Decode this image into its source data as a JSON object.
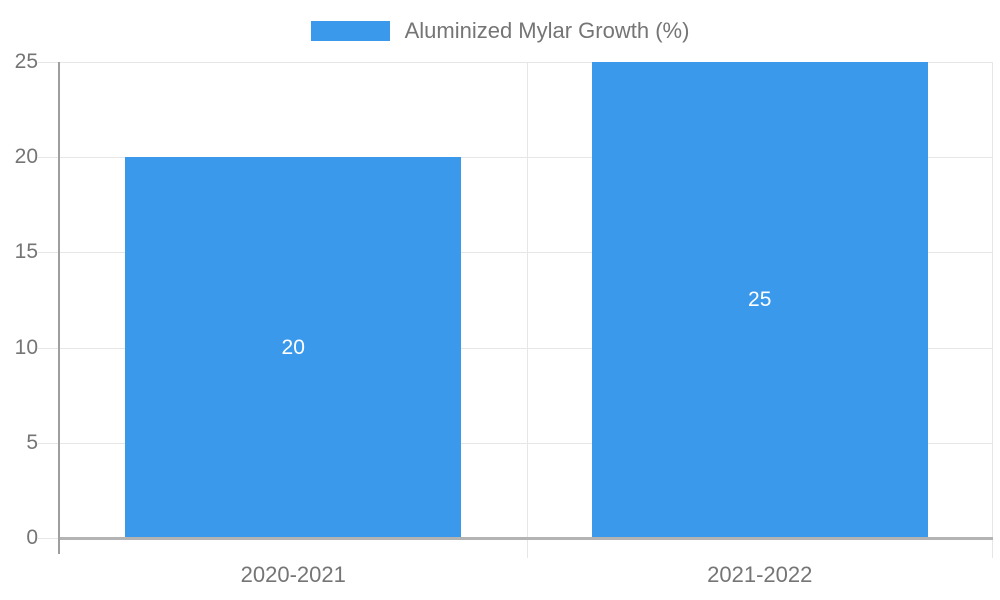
{
  "legend": {
    "label": "Aluminized Mylar Growth (%)"
  },
  "chart_data": {
    "type": "bar",
    "title": "",
    "xlabel": "",
    "ylabel": "",
    "categories": [
      "2020-2021",
      "2021-2022"
    ],
    "series": [
      {
        "name": "Aluminized Mylar Growth (%)",
        "values": [
          20,
          25
        ]
      }
    ],
    "data_labels": [
      "20",
      "25"
    ],
    "ylim": [
      0,
      25
    ],
    "y_ticks": [
      0,
      5,
      10,
      15,
      20,
      25
    ],
    "grid": true,
    "legend_position": "top",
    "bar_width_fraction": 0.72
  },
  "colors": {
    "bar": "#3B99EC",
    "axis_text": "#757575",
    "gridline": "#E6E6E6",
    "x_axis_line": "#B3B3B3",
    "y_axis_line": "#9E9E9E",
    "data_label": "#FFFFFF",
    "background": "#FFFFFF"
  }
}
